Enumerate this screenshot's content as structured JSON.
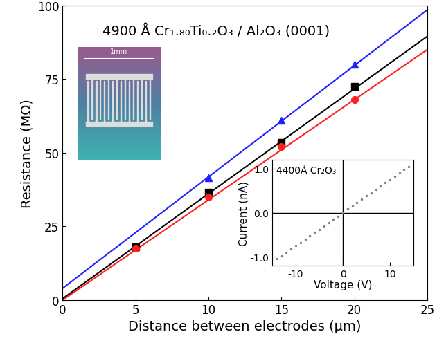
{
  "chart_data": [
    {
      "type": "scatter",
      "title": "4900 Å Cr₁.₈₀Ti₀.₂O₃ / Al₂O₃ (0001)",
      "x_label": "Distance between electrodes (µm)",
      "y_label": "Resistance (MΩ)",
      "xlim": [
        0,
        25
      ],
      "xticks": [
        0,
        5,
        10,
        15,
        20,
        25
      ],
      "ylim": [
        0,
        100
      ],
      "yticks": [
        0,
        25,
        50,
        75,
        100
      ],
      "annotations": [
        "1mm"
      ],
      "series": [
        {
          "type": "scatter",
          "color": "#1f1fff",
          "marker": "triangle",
          "x": [
            10,
            15,
            20
          ],
          "values": [
            41.5,
            61,
            80
          ]
        },
        {
          "type": "scatter",
          "color": "#000000",
          "marker": "square",
          "x": [
            5,
            10,
            15,
            20
          ],
          "values": [
            18,
            36.5,
            53.5,
            72.5
          ]
        },
        {
          "type": "scatter",
          "color": "#ff1f1f",
          "marker": "circle",
          "x": [
            5,
            10,
            15,
            20
          ],
          "values": [
            17.5,
            35,
            52,
            68
          ]
        },
        {
          "type": "line",
          "color": "#1f1fff",
          "x": [
            0,
            25
          ],
          "values": [
            4,
            98.5
          ]
        },
        {
          "type": "line",
          "color": "#000000",
          "x": [
            0,
            25
          ],
          "values": [
            0.5,
            89.5
          ]
        },
        {
          "type": "line",
          "color": "#ff1f1f",
          "x": [
            0,
            25
          ],
          "values": [
            0,
            85
          ]
        }
      ]
    },
    {
      "type": "scatter",
      "title": "4400Å Cr₂O₃",
      "x_label": "Voltage (V)",
      "y_label": "Current (nA)",
      "xlim": [
        -15,
        15
      ],
      "xticks": [
        -10,
        0,
        10
      ],
      "ylim": [
        -1.2,
        1.2
      ],
      "yticks": [
        {
          "value": -1,
          "label": "-1.0"
        },
        {
          "value": 0,
          "label": "0.0"
        },
        {
          "value": 1,
          "label": "1.0"
        }
      ],
      "series": [
        {
          "type": "scatter",
          "color": "#808080",
          "marker": "point",
          "x": [
            -14,
            -13,
            -12,
            -11,
            -10,
            -9,
            -8,
            -7,
            -6,
            -5,
            -4,
            -3,
            -2,
            -1,
            0,
            1,
            2,
            3,
            4,
            5,
            6,
            7,
            8,
            9,
            10,
            11,
            12,
            13,
            14
          ],
          "values": [
            -1.05,
            -0.98,
            -0.9,
            -0.83,
            -0.75,
            -0.68,
            -0.6,
            -0.53,
            -0.45,
            -0.38,
            -0.3,
            -0.23,
            -0.15,
            -0.08,
            0.0,
            0.08,
            0.15,
            0.23,
            0.3,
            0.38,
            0.45,
            0.53,
            0.6,
            0.68,
            0.75,
            0.83,
            0.9,
            0.98,
            1.05
          ]
        }
      ]
    }
  ]
}
